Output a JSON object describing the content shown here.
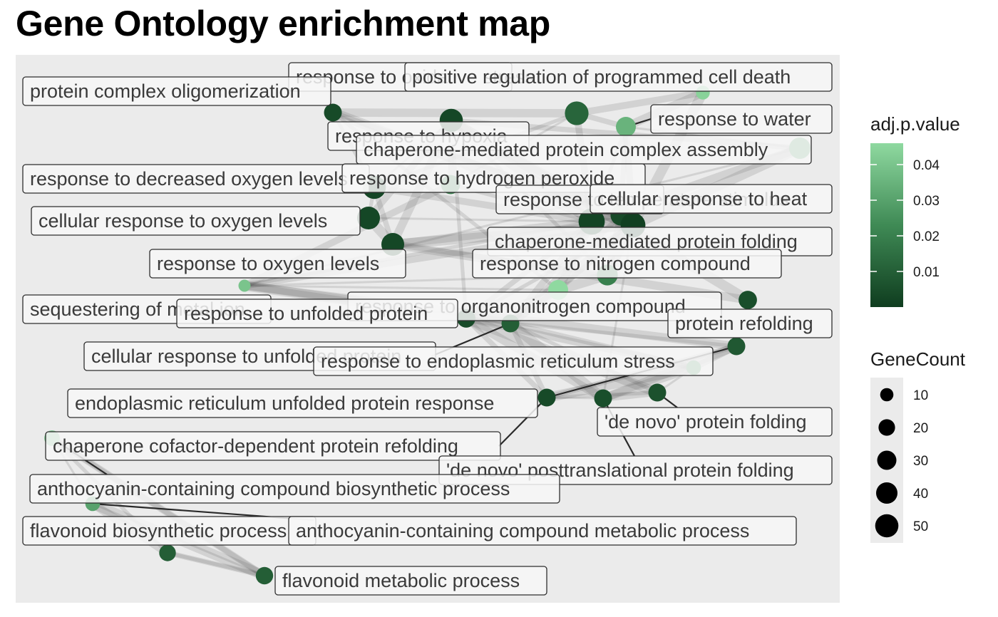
{
  "title": "Gene Ontology enrichment map",
  "colors": {
    "panel_background": "#ebebeb",
    "edge": "#3f3f3f",
    "node_low": "#0f3d1f",
    "node_high": "#8fd9a0",
    "label_fill": "#f7f7f7",
    "label_border": "#2e2e2e"
  },
  "legend": {
    "color": {
      "title": "adj.p.value",
      "min": 0.0,
      "max": 0.046,
      "ticks": [
        "0.01",
        "0.02",
        "0.03",
        "0.04"
      ],
      "tick_values": [
        0.01,
        0.02,
        0.03,
        0.04
      ]
    },
    "size": {
      "title": "GeneCount",
      "values": [
        10,
        20,
        30,
        40,
        50
      ],
      "labels": [
        "10",
        "20",
        "30",
        "40",
        "50"
      ]
    }
  },
  "network": {
    "nodes": [
      {
        "id": "response to oxidative stress",
        "label": "response to oxidative stress",
        "show_label": false,
        "p": 0.012,
        "count": 40
      },
      {
        "id": "positive regulation of programmed cell death",
        "label": "positive regulation of programmed cell death",
        "show_label": false,
        "p": 0.044,
        "count": 8
      },
      {
        "id": "protein complex oligomerization",
        "label": "protein complex oligomerization",
        "show_label": false,
        "p": 0.004,
        "count": 18
      },
      {
        "id": "response to water",
        "label": "response to water",
        "show_label": false,
        "p": 0.035,
        "count": 25
      },
      {
        "id": "response to hypoxia",
        "label": "response to hypoxia",
        "show_label": false,
        "p": 0.003,
        "count": 38
      },
      {
        "id": "chaperone-mediated protein complex assembly",
        "label": "chaperone-mediated protein complex assembly",
        "show_label": false,
        "p": 0.03,
        "count": 30
      },
      {
        "id": "response to decreased oxygen levels",
        "label": "response to decreased oxygen levels",
        "show_label": false,
        "p": 0.003,
        "count": 38
      },
      {
        "id": "response to hydrogen peroxide",
        "label": "response to hydrogen peroxide",
        "show_label": false,
        "p": 0.02,
        "count": 22
      },
      {
        "id": "response to temperature stimulus",
        "label": "response to temperature stimulus",
        "show_label": false,
        "p": 0.002,
        "count": 52
      },
      {
        "id": "cellular response to heat",
        "label": "cellular response to heat",
        "show_label": false,
        "p": 0.004,
        "count": 28
      },
      {
        "id": "cellular response to oxygen levels",
        "label": "cellular response to oxygen levels",
        "show_label": false,
        "p": 0.003,
        "count": 36
      },
      {
        "id": "chaperone-mediated protein folding",
        "label": "chaperone-mediated protein folding",
        "show_label": false,
        "p": 0.001,
        "count": 45
      },
      {
        "id": "response to oxygen levels",
        "label": "response to oxygen levels",
        "show_label": false,
        "p": 0.003,
        "count": 36
      },
      {
        "id": "response to nitrogen compound",
        "label": "response to nitrogen compound",
        "show_label": false,
        "p": 0.02,
        "count": 28
      },
      {
        "id": "response to heat",
        "label": "response to heat",
        "show_label": false,
        "p": 0.04,
        "count": 5
      },
      {
        "id": "response to organonitrogen compound",
        "label": "response to organonitrogen compound",
        "show_label": false,
        "p": 0.046,
        "count": 25
      },
      {
        "id": "sequestering of metal ion",
        "label": "sequestering of metal ion",
        "show_label": false,
        "p": 0.005,
        "count": 20
      },
      {
        "id": "response to unfolded protein",
        "label": "response to unfolded protein",
        "show_label": false,
        "p": 0.004,
        "count": 20
      },
      {
        "id": "protein refolding",
        "label": "protein refolding",
        "show_label": false,
        "p": 0.01,
        "count": 18
      },
      {
        "id": "cellular response to unfolded protein",
        "label": "cellular response to unfolded protein",
        "show_label": false,
        "p": 0.008,
        "count": 18
      },
      {
        "id": "response to endoplasmic reticulum stress",
        "label": "response to endoplasmic reticulum stress",
        "show_label": false,
        "p": 0.028,
        "count": 10
      },
      {
        "id": "endoplasmic reticulum unfolded protein response",
        "label": "endoplasmic reticulum unfolded protein response",
        "show_label": false,
        "p": 0.004,
        "count": 18
      },
      {
        "id": "'de novo' protein folding",
        "label": "'de novo' protein folding",
        "show_label": false,
        "p": 0.005,
        "count": 18
      },
      {
        "id": "'de novo' posttranslational protein folding",
        "label": "'de novo' posttranslational protein folding",
        "show_label": false,
        "p": 0.006,
        "count": 18
      },
      {
        "id": "chaperone cofactor-dependent protein refolding",
        "label": "chaperone cofactor-dependent protein refolding",
        "show_label": false,
        "p": 0.04,
        "count": 12
      },
      {
        "id": "anthocyanin-containing compound biosynthetic process",
        "label": "anthocyanin-containing compound biosynthetic process",
        "show_label": false,
        "p": 0.03,
        "count": 10
      },
      {
        "id": "flavonoid biosynthetic process",
        "label": "flavonoid biosynthetic process",
        "show_label": false,
        "p": 0.01,
        "count": 15
      },
      {
        "id": "anthocyanin-containing compound metabolic process",
        "label": "anthocyanin-containing compound metabolic process",
        "show_label": false,
        "p": 0.004,
        "count": 14
      },
      {
        "id": "flavonoid metabolic process",
        "label": "flavonoid metabolic process",
        "show_label": false,
        "p": 0.01,
        "count": 17
      }
    ],
    "edges": [
      [
        "response to decreased oxygen levels",
        "response to hypoxia"
      ],
      [
        "response to decreased oxygen levels",
        "cellular response to oxygen levels"
      ],
      [
        "response to decreased oxygen levels",
        "response to oxygen levels"
      ],
      [
        "response to hypoxia",
        "cellular response to oxygen levels"
      ],
      [
        "response to hypoxia",
        "response to oxygen levels"
      ],
      [
        "cellular response to oxygen levels",
        "response to oxygen levels"
      ],
      [
        "response to oxidative stress",
        "response to hydrogen peroxide"
      ],
      [
        "response to oxidative stress",
        "response to decreased oxygen levels"
      ],
      [
        "response to oxidative stress",
        "response to water"
      ],
      [
        "response to oxidative stress",
        "response to temperature stimulus"
      ],
      [
        "protein complex oligomerization",
        "response to oxidative stress"
      ],
      [
        "protein complex oligomerization",
        "chaperone-mediated protein folding"
      ],
      [
        "protein complex oligomerization",
        "response to temperature stimulus"
      ],
      [
        "protein complex oligomerization",
        "response to decreased oxygen levels"
      ],
      [
        "protein complex oligomerization",
        "cellular response to heat"
      ],
      [
        "positive regulation of programmed cell death",
        "response to oxidative stress"
      ],
      [
        "positive regulation of programmed cell death",
        "response to water"
      ],
      [
        "positive regulation of programmed cell death",
        "chaperone-mediated protein folding"
      ],
      [
        "response to water",
        "chaperone-mediated protein complex assembly"
      ],
      [
        "response to water",
        "response to temperature stimulus"
      ],
      [
        "response to water",
        "cellular response to heat"
      ],
      [
        "response to water",
        "chaperone-mediated protein folding"
      ],
      [
        "chaperone-mediated protein complex assembly",
        "response to temperature stimulus"
      ],
      [
        "chaperone-mediated protein complex assembly",
        "chaperone-mediated protein folding"
      ],
      [
        "chaperone-mediated protein complex assembly",
        "response to heat"
      ],
      [
        "response to hydrogen peroxide",
        "response to temperature stimulus"
      ],
      [
        "response to hydrogen peroxide",
        "response to hypoxia"
      ],
      [
        "response to hydrogen peroxide",
        "response to heat"
      ],
      [
        "response to temperature stimulus",
        "cellular response to heat"
      ],
      [
        "response to temperature stimulus",
        "chaperone-mediated protein folding"
      ],
      [
        "response to temperature stimulus",
        "response to nitrogen compound"
      ],
      [
        "response to temperature stimulus",
        "response to heat"
      ],
      [
        "response to temperature stimulus",
        "response to unfolded protein"
      ],
      [
        "response to temperature stimulus",
        "protein refolding"
      ],
      [
        "response to temperature stimulus",
        "response to organonitrogen compound"
      ],
      [
        "response to temperature stimulus",
        "response to hypoxia"
      ],
      [
        "response to temperature stimulus",
        "cellular response to oxygen levels"
      ],
      [
        "cellular response to heat",
        "chaperone-mediated protein folding"
      ],
      [
        "cellular response to heat",
        "protein refolding"
      ],
      [
        "cellular response to heat",
        "response to nitrogen compound"
      ],
      [
        "chaperone-mediated protein folding",
        "response to nitrogen compound"
      ],
      [
        "chaperone-mediated protein folding",
        "protein refolding"
      ],
      [
        "chaperone-mediated protein folding",
        "'de novo' protein folding"
      ],
      [
        "chaperone-mediated protein folding",
        "response to unfolded protein"
      ],
      [
        "chaperone-mediated protein folding",
        "response to organonitrogen compound"
      ],
      [
        "chaperone-mediated protein folding",
        "response to heat"
      ],
      [
        "chaperone-mediated protein folding",
        "response to hypoxia"
      ],
      [
        "response to nitrogen compound",
        "response to organonitrogen compound"
      ],
      [
        "response to nitrogen compound",
        "response to heat"
      ],
      [
        "response to nitrogen compound",
        "response to hypoxia"
      ],
      [
        "response to nitrogen compound",
        "response to oxygen levels"
      ],
      [
        "response to heat",
        "response to unfolded protein"
      ],
      [
        "response to heat",
        "cellular response to unfolded protein"
      ],
      [
        "response to heat",
        "protein refolding"
      ],
      [
        "response to heat",
        "response to organonitrogen compound"
      ],
      [
        "response to unfolded protein",
        "cellular response to unfolded protein"
      ],
      [
        "response to unfolded protein",
        "endoplasmic reticulum unfolded protein response"
      ],
      [
        "response to unfolded protein",
        "response to endoplasmic reticulum stress"
      ],
      [
        "response to unfolded protein",
        "'de novo' protein folding"
      ],
      [
        "response to unfolded protein",
        "'de novo' posttranslational protein folding"
      ],
      [
        "response to unfolded protein",
        "protein refolding"
      ],
      [
        "response to unfolded protein",
        "response to hypoxia"
      ],
      [
        "cellular response to unfolded protein",
        "endoplasmic reticulum unfolded protein response"
      ],
      [
        "cellular response to unfolded protein",
        "response to endoplasmic reticulum stress"
      ],
      [
        "cellular response to unfolded protein",
        "'de novo' protein folding"
      ],
      [
        "endoplasmic reticulum unfolded protein response",
        "response to endoplasmic reticulum stress"
      ],
      [
        "endoplasmic reticulum unfolded protein response",
        "'de novo' protein folding"
      ],
      [
        "endoplasmic reticulum unfolded protein response",
        "'de novo' posttranslational protein folding"
      ],
      [
        "endoplasmic reticulum unfolded protein response",
        "protein refolding"
      ],
      [
        "'de novo' protein folding",
        "'de novo' posttranslational protein folding"
      ],
      [
        "'de novo' protein folding",
        "response to endoplasmic reticulum stress"
      ],
      [
        "'de novo' protein folding",
        "protein refolding"
      ],
      [
        "'de novo' posttranslational protein folding",
        "response to endoplasmic reticulum stress"
      ],
      [
        "'de novo' posttranslational protein folding",
        "protein refolding"
      ],
      [
        "protein refolding",
        "response to endoplasmic reticulum stress"
      ],
      [
        "protein refolding",
        "response to organonitrogen compound"
      ],
      [
        "sequestering of metal ion",
        "response to oxygen levels"
      ],
      [
        "sequestering of metal ion",
        "response to hypoxia"
      ],
      [
        "response to organonitrogen compound",
        "response to unfolded protein"
      ],
      [
        "response to organonitrogen compound",
        "protein complex oligomerization"
      ],
      [
        "response to hypoxia",
        "chaperone-mediated protein complex assembly"
      ],
      [
        "response to decreased oxygen levels",
        "response to temperature stimulus"
      ],
      [
        "response to oxygen levels",
        "response to temperature stimulus"
      ],
      [
        "response to oxygen levels",
        "chaperone-mediated protein folding"
      ],
      [
        "chaperone cofactor-dependent protein refolding",
        "anthocyanin-containing compound biosynthetic process"
      ],
      [
        "chaperone cofactor-dependent protein refolding",
        "flavonoid biosynthetic process"
      ],
      [
        "chaperone cofactor-dependent protein refolding",
        "anthocyanin-containing compound metabolic process"
      ],
      [
        "chaperone cofactor-dependent protein refolding",
        "flavonoid metabolic process"
      ],
      [
        "anthocyanin-containing compound biosynthetic process",
        "flavonoid biosynthetic process"
      ],
      [
        "anthocyanin-containing compound biosynthetic process",
        "anthocyanin-containing compound metabolic process"
      ],
      [
        "anthocyanin-containing compound biosynthetic process",
        "flavonoid metabolic process"
      ],
      [
        "flavonoid biosynthetic process",
        "anthocyanin-containing compound metabolic process"
      ],
      [
        "flavonoid biosynthetic process",
        "flavonoid metabolic process"
      ],
      [
        "anthocyanin-containing compound metabolic process",
        "flavonoid metabolic process"
      ]
    ],
    "labels": [
      "response to oxidative stress",
      "positive regulation of programmed cell death",
      "protein complex oligomerization",
      "response to water",
      "response to hypoxia",
      "chaperone-mediated protein complex assembly",
      "response to decreased oxygen levels",
      "response to hydrogen peroxide",
      "response to temperature stimulus",
      "cellular response to heat",
      "cellular response to oxygen levels",
      "chaperone-mediated protein folding",
      "response to oxygen levels",
      "response to nitrogen compound",
      "response to organonitrogen compound",
      "sequestering of metal ion",
      "response to unfolded protein",
      "protein refolding",
      "cellular response to unfolded protein",
      "response to endoplasmic reticulum stress",
      "endoplasmic reticulum unfolded protein response",
      "'de novo' protein folding",
      "chaperone cofactor-dependent protein refolding",
      "'de novo' posttranslational protein folding",
      "anthocyanin-containing compound biosynthetic process",
      "flavonoid biosynthetic process",
      "anthocyanin-containing compound metabolic process",
      "flavonoid metabolic process"
    ]
  }
}
